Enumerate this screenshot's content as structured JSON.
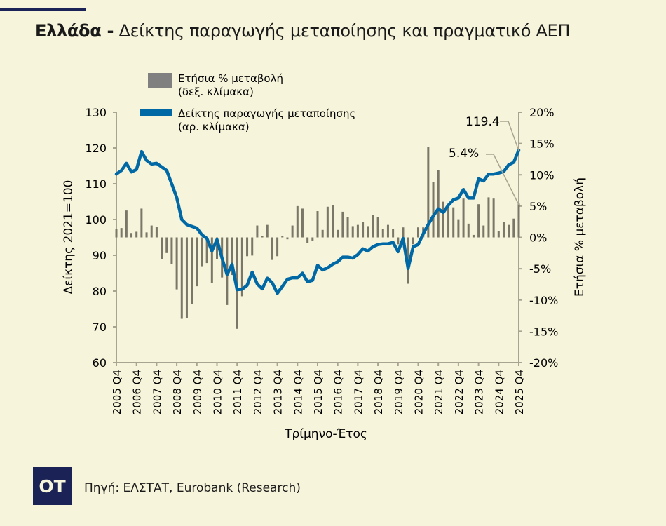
{
  "title": {
    "bold": "Ελλάδα -",
    "rest": "Δείκτης παραγωγής μεταποίησης και πραγματικό ΑΕΠ"
  },
  "logo": "OT",
  "source": "Πηγή: ΕΛΣΤΑΤ, Eurobank (Research)",
  "colors": {
    "background": "#f6f4da",
    "bars": "#7a7668",
    "line": "#0068a5",
    "axis": "#a8a491",
    "brand": "#1b2255"
  },
  "chart_data": {
    "type": "bar+line",
    "xlabel": "Τρίμηνο-Έτος",
    "ylabel_left": "Δείκτης 2021=100",
    "ylabel_right": "Ετήσια % μεταβολή",
    "ylim_left": [
      60,
      130
    ],
    "ylim_right": [
      -20,
      20
    ],
    "yticks_left": [
      "60",
      "70",
      "80",
      "90",
      "100",
      "110",
      "120",
      "130"
    ],
    "yticks_right": [
      "-20%",
      "-15%",
      "-10%",
      "-5%",
      "0%",
      "5%",
      "10%",
      "15%",
      "20%"
    ],
    "xticks": [
      "2005 Q4",
      "2006 Q4",
      "2007 Q4",
      "2008 Q4",
      "2009 Q4",
      "2010 Q4",
      "2011 Q4",
      "2012 Q4",
      "2013 Q4",
      "2014 Q4",
      "2015 Q4",
      "2016 Q4",
      "2017 Q4",
      "2018 Q4",
      "2019 Q4",
      "2020 Q4",
      "2021 Q4",
      "2022 Q4",
      "2023 Q4",
      "2024 Q4",
      "2025 Q4"
    ],
    "legend_position": "top",
    "grid": false,
    "series": [
      {
        "name": "Ετήσια % μεταβολή",
        "sub": "(δεξ. κλίμακα)",
        "type": "bar",
        "axis": "right",
        "values": [
          1.3,
          1.5,
          4.3,
          0.7,
          0.9,
          4.6,
          0.8,
          1.9,
          1.7,
          -3.5,
          -2.5,
          -4.2,
          -8.3,
          -13,
          -12.9,
          -10.7,
          -7.8,
          -4.6,
          -4.1,
          -7.3,
          -3.5,
          -6.4,
          -10.8,
          -6,
          -14.6,
          -9.4,
          -3,
          -2.9,
          1.9,
          0.2,
          2,
          -3.6,
          -3,
          0.2,
          -0.3,
          1.9,
          5,
          4.6,
          -0.9,
          -0.5,
          4.2,
          1.2,
          4.9,
          5.2,
          1.2,
          4.1,
          3.2,
          1.8,
          2,
          2.5,
          1.8,
          3.6,
          3.2,
          1.4,
          2,
          1.3,
          -1.1,
          1.6,
          -7.4,
          -1.1,
          1.6,
          1.6,
          14.5,
          8.8,
          10.7,
          5.7,
          5.2,
          4.8,
          2.9,
          6.2,
          2.2,
          0.4,
          5.3,
          1.9,
          6.4,
          6.2,
          1,
          2.5,
          2,
          3,
          5.4
        ]
      },
      {
        "name": "Δείκτης παραγωγής μεταποίησης",
        "sub": "(αρ. κλίμακα)",
        "type": "line",
        "axis": "left",
        "values": [
          112.7,
          113.7,
          115.7,
          113.3,
          114,
          119,
          116.5,
          115.5,
          115.7,
          114.7,
          113.7,
          110,
          106.1,
          100,
          98.6,
          98.1,
          97.6,
          95.7,
          94.7,
          91.2,
          94.4,
          89.2,
          84.6,
          87.5,
          80.4,
          80.5,
          81.6,
          85.3,
          82,
          80.6,
          83.6,
          82.3,
          79.4,
          81.3,
          83.3,
          83.7,
          83.7,
          85,
          82.6,
          83,
          87.2,
          85.9,
          86.5,
          87.5,
          88.2,
          89.5,
          89.5,
          89.2,
          90.2,
          91.8,
          91.2,
          92.4,
          93,
          93.2,
          93.2,
          93.6,
          91,
          94.7,
          86.3,
          92.4,
          93,
          96,
          98.6,
          101,
          103,
          102,
          104,
          105.5,
          106,
          108.4,
          106,
          106,
          111.4,
          110.8,
          112.7,
          112.7,
          113,
          113.4,
          115.3,
          116,
          119.4
        ]
      }
    ],
    "annotations": {
      "line_last": "119.4",
      "bar_last": "5.4%"
    }
  }
}
